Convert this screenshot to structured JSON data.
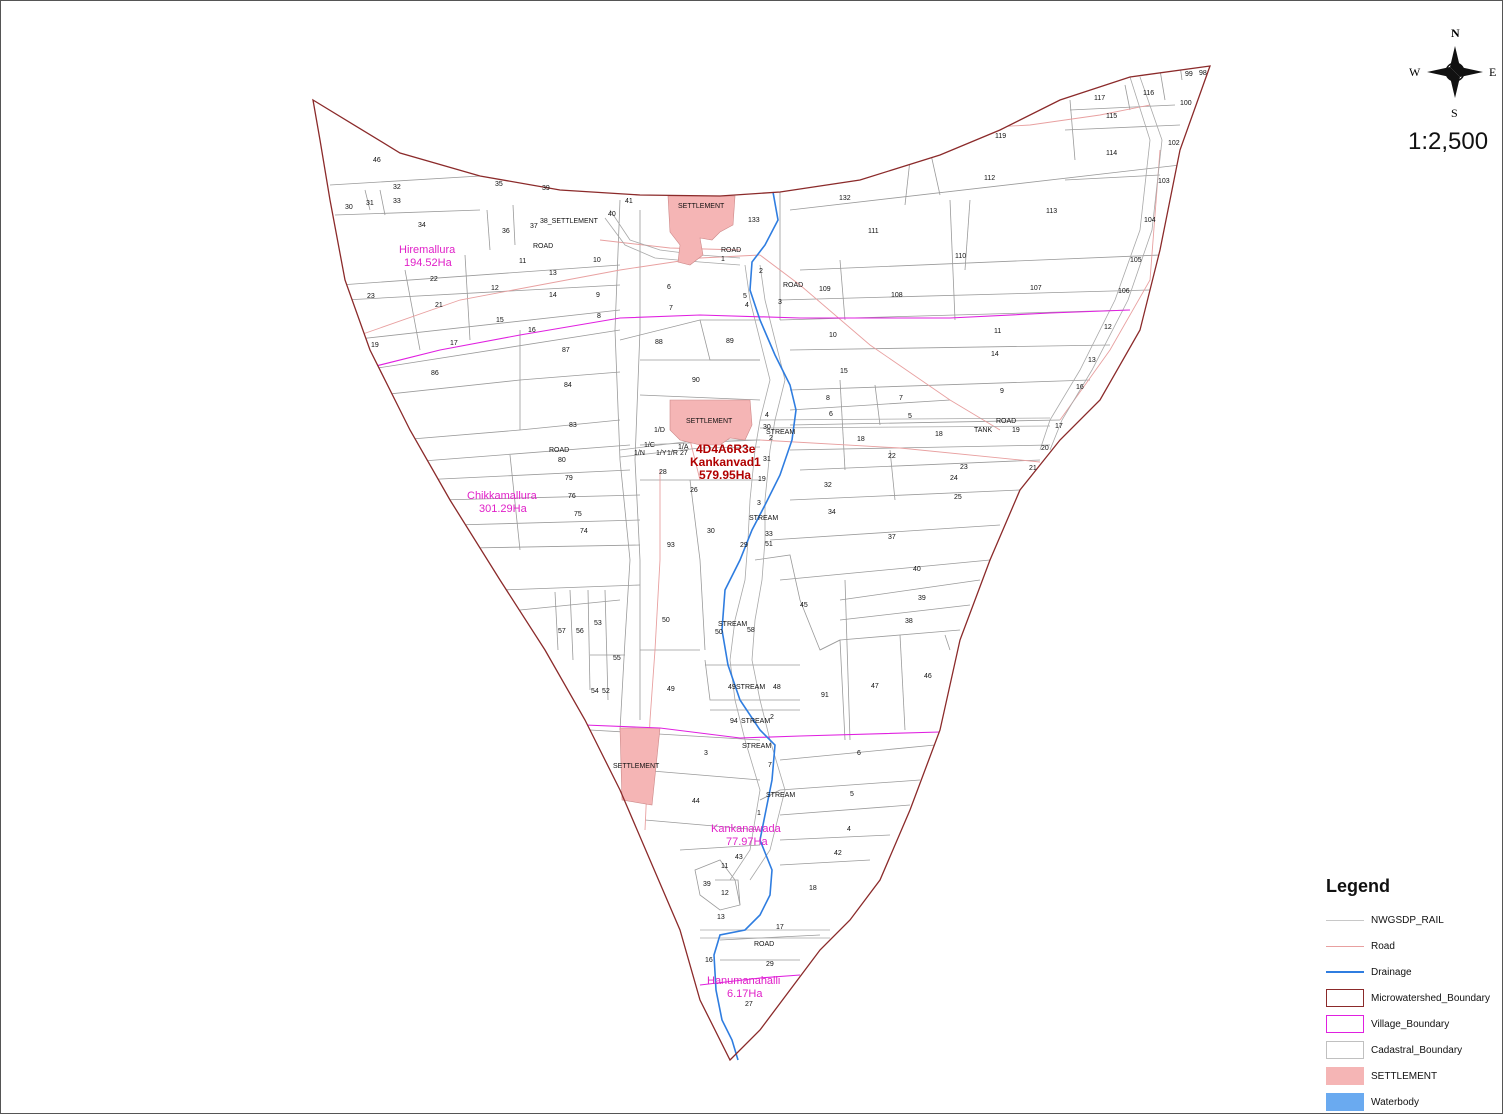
{
  "compass": {
    "n": "N",
    "s": "S",
    "e": "E",
    "w": "W"
  },
  "scale": "1:2,500",
  "colors": {
    "microwatershed": "#8b2a2a",
    "village": "#e020e0",
    "road": "#e8a0a0",
    "drainage": "#2f7de0",
    "cadastral": "#9a9a9a",
    "settlement": "#f5b5b5",
    "waterbody": "#6aaaf0"
  },
  "microwatershed": {
    "code": "4D4A6R3e",
    "name": "Kankanvad1",
    "area": "579.95Ha"
  },
  "villages": [
    {
      "name": "Hiremallura",
      "area": "194.52Ha"
    },
    {
      "name": "Chikkamallura",
      "area": "301.29Ha"
    },
    {
      "name": "Kankanawada",
      "area": "77.97Ha"
    },
    {
      "name": "Hanumanahalli",
      "area": "6.17Ha"
    }
  ],
  "labels": {
    "settlement": "SETTLEMENT",
    "road": "ROAD",
    "stream": "STREAM",
    "tank": "TANK",
    "settlement_plot": "38_SETTLEMENT"
  },
  "parcels": [
    "46",
    "32",
    "30",
    "31",
    "33",
    "34",
    "35",
    "39",
    "37",
    "36",
    "41",
    "40",
    "133",
    "132",
    "11",
    "13",
    "10",
    "22",
    "23",
    "21",
    "12",
    "14",
    "9",
    "15",
    "8",
    "16",
    "19",
    "17",
    "87",
    "86",
    "84",
    "83",
    "80",
    "79",
    "76",
    "75",
    "74",
    "88",
    "89",
    "90",
    "6",
    "7",
    "1",
    "2",
    "3",
    "5",
    "4",
    "109",
    "108",
    "107",
    "110",
    "111",
    "112",
    "113",
    "114",
    "119",
    "117",
    "116",
    "115",
    "99",
    "98",
    "100",
    "102",
    "103",
    "104",
    "105",
    "106",
    "12",
    "13",
    "16",
    "17",
    "20",
    "21",
    "10",
    "11",
    "14",
    "15",
    "9",
    "8",
    "7",
    "6",
    "5",
    "4",
    "18",
    "18",
    "19",
    "22",
    "23",
    "24",
    "25",
    "32",
    "34",
    "37",
    "40",
    "39",
    "38",
    "45",
    "46",
    "47",
    "91",
    "1/D",
    "1/C",
    "1/N",
    "1/Y",
    "1/R",
    "1/A",
    "27",
    "28",
    "26",
    "19",
    "31",
    "3",
    "2",
    "30",
    "30",
    "29",
    "93",
    "33",
    "51",
    "50",
    "50",
    "58",
    "57",
    "56",
    "53",
    "55",
    "54",
    "52",
    "49",
    "49",
    "48",
    "94",
    "2",
    "3",
    "7",
    "6",
    "5",
    "4",
    "1",
    "44",
    "43",
    "11",
    "42",
    "39",
    "12",
    "18",
    "13",
    "17",
    "16",
    "29",
    "27"
  ],
  "legend": {
    "title": "Legend",
    "items": [
      {
        "label": "NWGSDP_RAIL",
        "kind": "line",
        "symbol": "rail"
      },
      {
        "label": "Road",
        "kind": "line",
        "symbol": "road"
      },
      {
        "label": "Drainage",
        "kind": "line",
        "symbol": "drainage"
      },
      {
        "label": "Microwatershed_Boundary",
        "kind": "box",
        "symbol": "microwatershed"
      },
      {
        "label": "Village_Boundary",
        "kind": "box",
        "symbol": "village"
      },
      {
        "label": "Cadastral_Boundary",
        "kind": "box",
        "symbol": "cadastral"
      },
      {
        "label": "SETTLEMENT",
        "kind": "fill",
        "symbol": "settlement"
      },
      {
        "label": "Waterbody",
        "kind": "fill",
        "symbol": "waterbody"
      }
    ]
  }
}
